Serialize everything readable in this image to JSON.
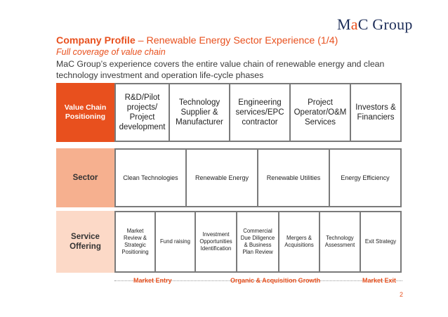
{
  "logo": {
    "part1": "M",
    "part2": "a",
    "part3": "C Group"
  },
  "title": {
    "bold": "Company Profile",
    "rest": " – Renewable Energy Sector Experience (1/4)"
  },
  "subtitle": "Full coverage of value chain",
  "description": "MaC Group’s experience covers the entire value chain of renewable energy and clean technology investment and operation life-cycle phases",
  "value_chain": {
    "header": "Value Chain Positioning",
    "items": [
      "R&D/Pilot projects/ Project development",
      "Technology Supplier & Manufacturer",
      "Engineering services/EPC contractor",
      "Project Operator/O&M Services",
      "Investors & Financiers"
    ]
  },
  "sector": {
    "header": "Sector",
    "items": [
      "Clean Technologies",
      "Renewable Energy",
      "Renewable Utilities",
      "Energy Efficiency"
    ]
  },
  "service_offering": {
    "header": "Service Offering",
    "items": [
      "Market Review & Strategic Positioning",
      "Fund raising",
      "Investment Opportunities Identification",
      "Commercial Due Diligence & Business Plan Review",
      "Mergers & Acquisitions",
      "Technology Assessment",
      "Exit Strategy"
    ]
  },
  "timeline": {
    "market_entry": "Market Entry",
    "growth": "Organic & Acquisition Growth",
    "market_exit": "Market Exit"
  },
  "page_number": "2",
  "colors": {
    "accent": "#e8501e",
    "navy": "#1f2f5a",
    "light_orange": "#f6b08f",
    "pale_orange": "#fcd9c7"
  }
}
